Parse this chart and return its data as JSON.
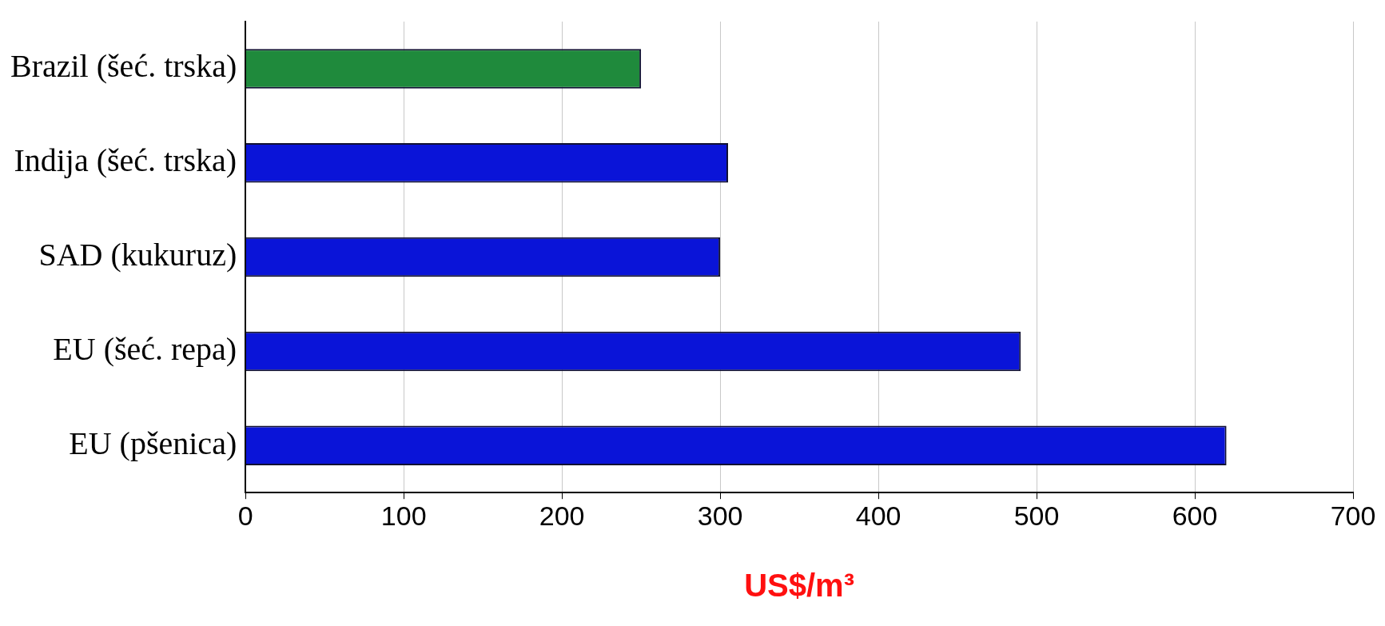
{
  "chart_data": {
    "type": "bar",
    "orientation": "horizontal",
    "xlabel": "US$/m³",
    "categories": [
      "Brazil (šeć. trska)",
      "Indija (šeć. trska)",
      "SAD (kukuruz)",
      "EU (šeć. repa)",
      "EU (pšenica)"
    ],
    "values": [
      250,
      305,
      300,
      490,
      620
    ],
    "colors": [
      "#1f8a3c",
      "#0a14d8",
      "#0a14d8",
      "#0a14d8",
      "#0a14d8"
    ],
    "xlim": [
      0,
      700
    ],
    "xticks": [
      0,
      100,
      200,
      300,
      400,
      500,
      600,
      700
    ],
    "grid": "x",
    "legend": false
  }
}
